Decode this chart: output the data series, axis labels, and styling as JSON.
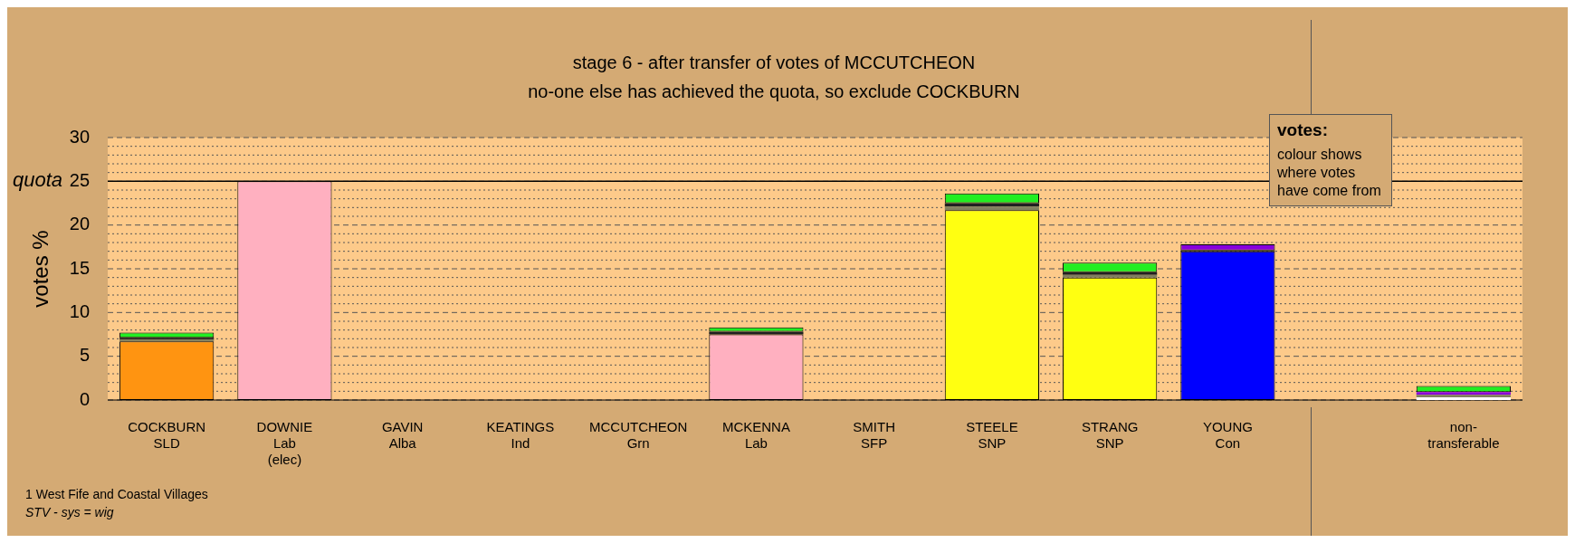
{
  "chart_data": {
    "type": "bar",
    "stacked": true,
    "title": "stage 6 - after transfer of votes of MCCUTCHEON",
    "subtitle": "no-one else has achieved the quota, so exclude COCKBURN",
    "ylabel": "votes %",
    "categories": [
      "COCKBURN\nSLD",
      "DOWNIE\nLab\n(elec)",
      "GAVIN\nAlba",
      "KEATINGS\nInd",
      "MCCUTCHEON\nGrn",
      "MCKENNA\nLab",
      "SMITH\nSFP",
      "STEELE\nSNP",
      "STRANG\nSNP",
      "YOUNG\nCon",
      null,
      "non-\ntransferable"
    ],
    "series": [
      {
        "colors": [
          "#ff9411",
          "#ffb0c0",
          "#ffffff",
          "#ffffff",
          "#ffffff",
          "#ffb0c0",
          "#ffffff",
          "#ffff11",
          "#ffff11",
          "#0000ff",
          "#ffffff",
          "#ffffff"
        ],
        "values": [
          6.7,
          25,
          0,
          0,
          0,
          7.5,
          0,
          21.7,
          14.0,
          17.0,
          null,
          0.3
        ]
      },
      {
        "color": "#808060",
        "values": [
          0.2,
          0,
          0,
          0,
          0,
          0,
          0,
          0.4,
          0.3,
          0,
          null,
          0.3
        ]
      },
      {
        "color": "#202020",
        "values": [
          0.2,
          0,
          0,
          0,
          0,
          0.3,
          0,
          0.4,
          0.3,
          0.1,
          null,
          0
        ]
      },
      {
        "color": "#8800dd",
        "values": [
          0,
          0,
          0,
          0,
          0,
          0,
          0,
          0,
          0,
          0.7,
          null,
          0.3
        ]
      },
      {
        "color": "#22ee22",
        "values": [
          0.6,
          0,
          0,
          0,
          0,
          0.5,
          0,
          1.1,
          1.1,
          0,
          null,
          0.7
        ]
      }
    ],
    "ylim": [
      0,
      30
    ],
    "yticks": [
      0,
      5,
      10,
      15,
      20,
      25,
      30
    ],
    "grid": "y",
    "legend": false,
    "ref_lines": [
      {
        "axis": "y",
        "value": 25,
        "label": "quota"
      }
    ],
    "annotations": [
      "votes:",
      "colour shows where votes have come from",
      "1 West Fife and Coastal Villages",
      "STV - sys = wig"
    ]
  }
}
